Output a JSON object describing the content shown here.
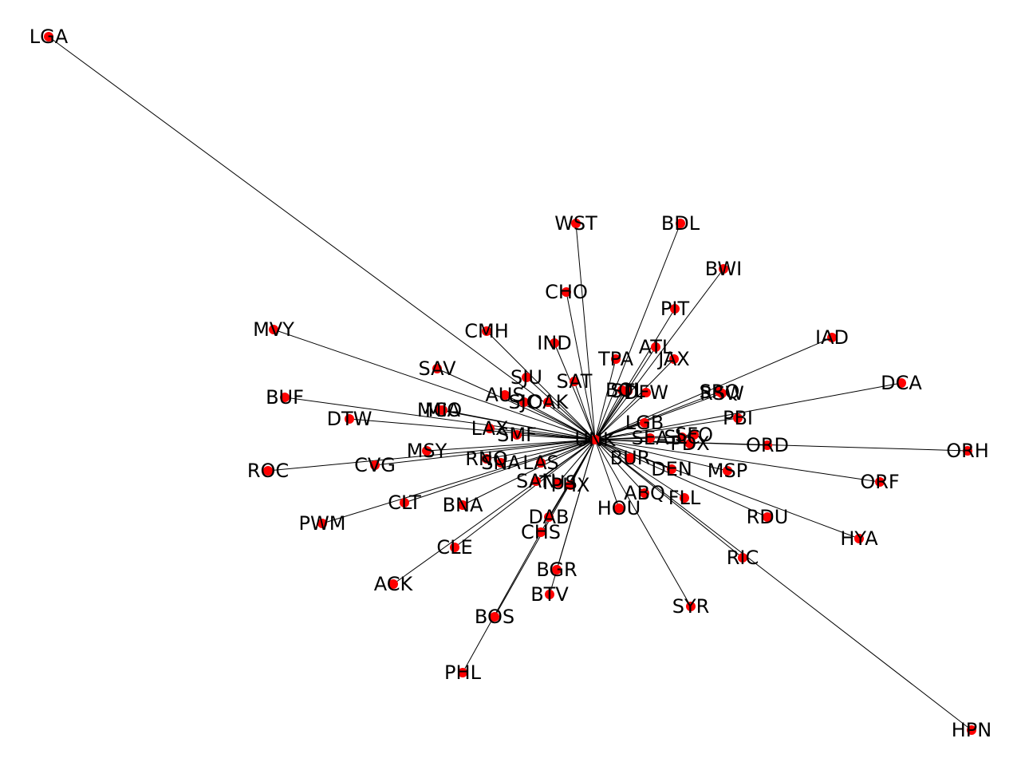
{
  "graph": {
    "type": "network",
    "hub": "UNK",
    "colors": {
      "node": "#ff0000",
      "edge": "#000000",
      "label": "#000000"
    },
    "nodes": [
      "LGA",
      "WST",
      "BDL",
      "BWI",
      "PIT",
      "CHO",
      "CMH",
      "IND",
      "MVY",
      "ATL",
      "TPA",
      "JAX",
      "IAD",
      "SAV",
      "SJU",
      "SAT",
      "DCA",
      "BUF",
      "AUS",
      "BOI",
      "STL",
      "DFW",
      "SRQ",
      "RSW",
      "MCO",
      "MIA",
      "SJC",
      "OAK",
      "DTW",
      "PBI",
      "LAX",
      "SMF",
      "LGB",
      "SEA",
      "PDX",
      "SLC",
      "SFO",
      "ORD",
      "ORH",
      "MSY",
      "ROC",
      "RNO",
      "SNA",
      "LAS",
      "CVG",
      "BUR",
      "DEN",
      "MSP",
      "ORF",
      "SAN",
      "TUS",
      "PHX",
      "CLT",
      "BNA",
      "ABQ",
      "FLL",
      "HOU",
      "RDU",
      "PWM",
      "DAB",
      "CHS",
      "HYA",
      "CLE",
      "RIC",
      "BGR",
      "ACK",
      "BTV",
      "SYR",
      "BOS",
      "PHL",
      "HPN",
      "UNK"
    ],
    "edges": [
      [
        "UNK",
        "LGA"
      ],
      [
        "UNK",
        "WST"
      ],
      [
        "UNK",
        "BDL"
      ],
      [
        "UNK",
        "BWI"
      ],
      [
        "UNK",
        "PIT"
      ],
      [
        "UNK",
        "CHO"
      ],
      [
        "UNK",
        "CMH"
      ],
      [
        "UNK",
        "IND"
      ],
      [
        "UNK",
        "MVY"
      ],
      [
        "UNK",
        "ATL"
      ],
      [
        "UNK",
        "TPA"
      ],
      [
        "UNK",
        "JAX"
      ],
      [
        "UNK",
        "IAD"
      ],
      [
        "UNK",
        "SAV"
      ],
      [
        "UNK",
        "SJU"
      ],
      [
        "UNK",
        "SAT"
      ],
      [
        "UNK",
        "DCA"
      ],
      [
        "UNK",
        "BUF"
      ],
      [
        "UNK",
        "AUS"
      ],
      [
        "UNK",
        "BOI"
      ],
      [
        "UNK",
        "STL"
      ],
      [
        "UNK",
        "DFW"
      ],
      [
        "UNK",
        "SRQ"
      ],
      [
        "UNK",
        "RSW"
      ],
      [
        "UNK",
        "MCO"
      ],
      [
        "UNK",
        "MIA"
      ],
      [
        "UNK",
        "SJC"
      ],
      [
        "UNK",
        "OAK"
      ],
      [
        "UNK",
        "DTW"
      ],
      [
        "UNK",
        "PBI"
      ],
      [
        "UNK",
        "LAX"
      ],
      [
        "UNK",
        "SMF"
      ],
      [
        "UNK",
        "LGB"
      ],
      [
        "UNK",
        "SEA"
      ],
      [
        "UNK",
        "PDX"
      ],
      [
        "UNK",
        "SLC"
      ],
      [
        "UNK",
        "SFO"
      ],
      [
        "UNK",
        "ORD"
      ],
      [
        "UNK",
        "ORH"
      ],
      [
        "UNK",
        "MSY"
      ],
      [
        "UNK",
        "ROC"
      ],
      [
        "UNK",
        "RNO"
      ],
      [
        "UNK",
        "SNA"
      ],
      [
        "UNK",
        "LAS"
      ],
      [
        "UNK",
        "CVG"
      ],
      [
        "UNK",
        "BUR"
      ],
      [
        "UNK",
        "DEN"
      ],
      [
        "UNK",
        "MSP"
      ],
      [
        "UNK",
        "ORF"
      ],
      [
        "UNK",
        "SAN"
      ],
      [
        "UNK",
        "TUS"
      ],
      [
        "UNK",
        "PHX"
      ],
      [
        "UNK",
        "CLT"
      ],
      [
        "UNK",
        "BNA"
      ],
      [
        "UNK",
        "ABQ"
      ],
      [
        "UNK",
        "FLL"
      ],
      [
        "UNK",
        "HOU"
      ],
      [
        "UNK",
        "RDU"
      ],
      [
        "UNK",
        "PWM"
      ],
      [
        "UNK",
        "DAB"
      ],
      [
        "UNK",
        "CHS"
      ],
      [
        "UNK",
        "HYA"
      ],
      [
        "UNK",
        "CLE"
      ],
      [
        "UNK",
        "RIC"
      ],
      [
        "UNK",
        "BGR"
      ],
      [
        "UNK",
        "ACK"
      ],
      [
        "UNK",
        "BTV"
      ],
      [
        "UNK",
        "SYR"
      ],
      [
        "UNK",
        "BOS"
      ],
      [
        "UNK",
        "HPN"
      ],
      [
        "CHS",
        "PHL"
      ]
    ]
  }
}
